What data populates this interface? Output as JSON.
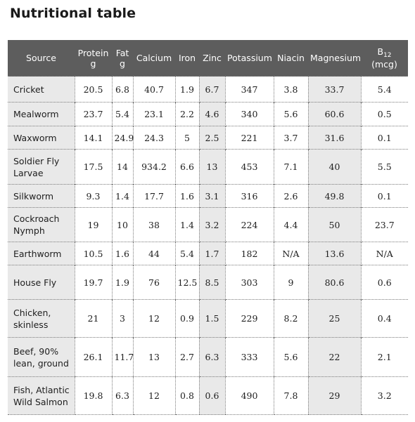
{
  "title": "Nutritional table",
  "columns": [
    {
      "label": "Source"
    },
    {
      "label": "Protein g"
    },
    {
      "label": "Fat g"
    },
    {
      "label": "Calcium"
    },
    {
      "label": "Iron"
    },
    {
      "label": "Zinc"
    },
    {
      "label": "Potassium"
    },
    {
      "label": "Niacin"
    },
    {
      "label": "Magnesium"
    },
    {
      "label": "B",
      "sub": "12",
      "unit": "(mcg)"
    }
  ],
  "rows": [
    {
      "cells": [
        "Cricket",
        "20.5",
        "6.8",
        "40.7",
        "1.9",
        "6.7",
        "347",
        "3.8",
        "33.7",
        "5.4"
      ]
    },
    {
      "cells": [
        "Mealworm",
        "23.7",
        "5.4",
        "23.1",
        "2.2",
        "4.6",
        "340",
        "5.6",
        "60.6",
        "0.5"
      ]
    },
    {
      "cells": [
        "Waxworm",
        "14.1",
        "24.9",
        "24.3",
        "5",
        "2.5",
        "221",
        "3.7",
        "31.6",
        "0.1"
      ]
    },
    {
      "cells": [
        "Soldier Fly Larvae",
        "17.5",
        "14",
        "934.2",
        "6.6",
        "13",
        "453",
        "7.1",
        "40",
        "5.5"
      ]
    },
    {
      "cells": [
        "Silkworm",
        "9.3",
        "1.4",
        "17.7",
        "1.6",
        "3.1",
        "316",
        "2.6",
        "49.8",
        "0.1"
      ]
    },
    {
      "cells": [
        "Cockroach Nymph",
        "19",
        "10",
        "38",
        "1.4",
        "3.2",
        "224",
        "4.4",
        "50",
        "23.7"
      ]
    },
    {
      "cells": [
        "Earthworm",
        "10.5",
        "1.6",
        "44",
        "5.4",
        "1.7",
        "182",
        "N/A",
        "13.6",
        "N/A"
      ]
    },
    {
      "cells": [
        "House Fly",
        "19.7",
        "1.9",
        "76",
        "12.5",
        "8.5",
        "303",
        "9",
        "80.6",
        "0.6"
      ]
    },
    {
      "cells": [
        "Chicken, skinless",
        "21",
        "3",
        "12",
        "0.9",
        "1.5",
        "229",
        "8.2",
        "25",
        "0.4"
      ]
    },
    {
      "cells": [
        "Beef, 90% lean, ground",
        "26.1",
        "11.7",
        "13",
        "2.7",
        "6.3",
        "333",
        "5.6",
        "22",
        "2.1"
      ]
    },
    {
      "cells": [
        "Fish, Atlantic Wild Salmon",
        "19.8",
        "6.3",
        "12",
        "0.8",
        "0.6",
        "490",
        "7.8",
        "29",
        "3.2"
      ]
    }
  ],
  "colors": {
    "header_bg": "#5d5d5d",
    "header_text": "#ffffff",
    "shade": "#e9e9e9"
  }
}
